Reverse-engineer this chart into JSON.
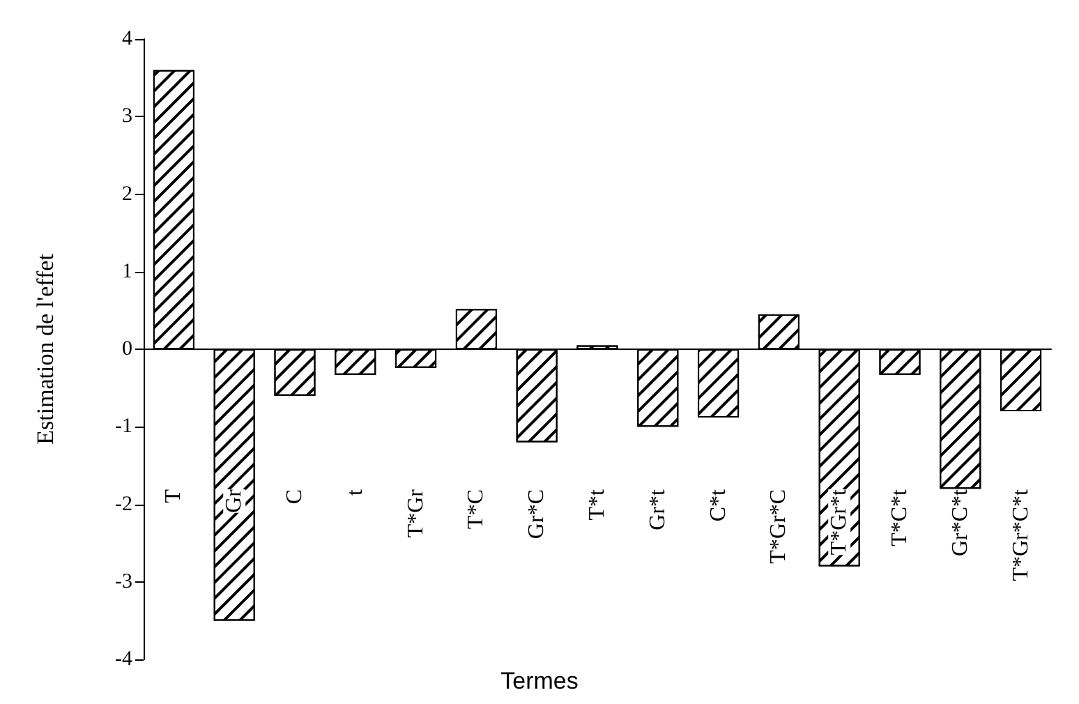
{
  "chart_data": {
    "type": "bar",
    "xlabel": "Termes",
    "ylabel": "Estimation de l'effet",
    "categories": [
      "T",
      "Gr",
      "C",
      "t",
      "T*Gr",
      "T*C",
      "Gr*C",
      "T*t",
      "Gr*t",
      "C*t",
      "T*Gr*C",
      "T*Gr*t",
      "T*C*t",
      "Gr*C*t",
      "T*Gr*C*t"
    ],
    "values": [
      3.6,
      -3.5,
      -0.6,
      -0.33,
      -0.24,
      0.52,
      -1.2,
      0.05,
      -1.0,
      -0.88,
      0.45,
      -2.8,
      -0.33,
      -1.8,
      -0.8
    ],
    "color": "#000000",
    "ylim": [
      -4,
      4
    ],
    "yticks": [
      -4,
      -3,
      -2,
      -1,
      0,
      1,
      2,
      3,
      4
    ]
  }
}
